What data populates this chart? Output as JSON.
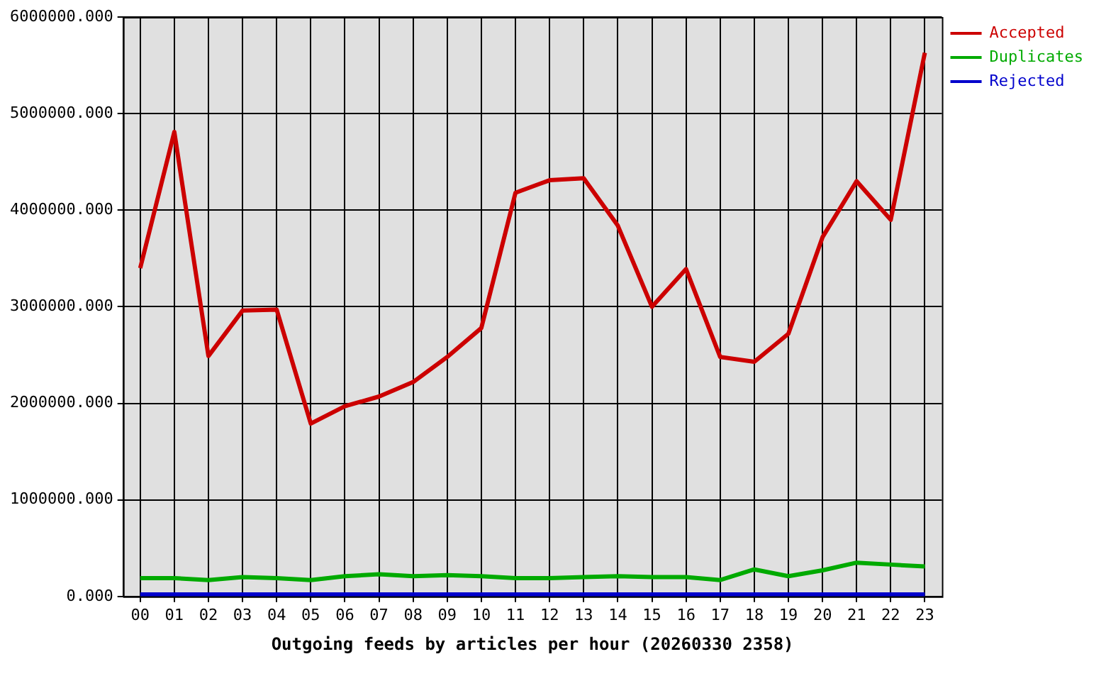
{
  "chart_data": {
    "type": "line",
    "xlabel": "Outgoing feeds by articles per hour (20260330 2358)",
    "categories": [
      "00",
      "01",
      "02",
      "03",
      "04",
      "05",
      "06",
      "07",
      "08",
      "09",
      "10",
      "11",
      "12",
      "13",
      "14",
      "15",
      "16",
      "17",
      "18",
      "19",
      "20",
      "21",
      "22",
      "23"
    ],
    "series": [
      {
        "name": "Accepted",
        "color": "#cc0000",
        "values": [
          3400000,
          4810000,
          2490000,
          2960000,
          2970000,
          1790000,
          1970000,
          2070000,
          2220000,
          2480000,
          2780000,
          4180000,
          4310000,
          4330000,
          3840000,
          3000000,
          3390000,
          2480000,
          2430000,
          2720000,
          3720000,
          4300000,
          3900000,
          5630000
        ]
      },
      {
        "name": "Duplicates",
        "color": "#00aa00",
        "values": [
          190000,
          190000,
          170000,
          200000,
          190000,
          170000,
          210000,
          230000,
          210000,
          220000,
          210000,
          190000,
          190000,
          200000,
          210000,
          200000,
          200000,
          170000,
          280000,
          210000,
          270000,
          350000,
          330000,
          310000
        ]
      },
      {
        "name": "Rejected",
        "color": "#0000cc",
        "values": [
          20000,
          20000,
          20000,
          20000,
          20000,
          20000,
          20000,
          20000,
          20000,
          20000,
          20000,
          20000,
          20000,
          20000,
          20000,
          20000,
          20000,
          20000,
          20000,
          20000,
          20000,
          20000,
          20000,
          20000
        ]
      }
    ],
    "ylim": [
      0,
      6000000
    ],
    "yticks": [
      {
        "value": 0,
        "label": "0.000"
      },
      {
        "value": 1000000,
        "label": "1000000.000"
      },
      {
        "value": 2000000,
        "label": "2000000.000"
      },
      {
        "value": 3000000,
        "label": "3000000.000"
      },
      {
        "value": 4000000,
        "label": "4000000.000"
      },
      {
        "value": 5000000,
        "label": "5000000.000"
      },
      {
        "value": 6000000,
        "label": "6000000.000"
      }
    ],
    "grid": true,
    "legend": "top right",
    "line_style": "solid"
  }
}
